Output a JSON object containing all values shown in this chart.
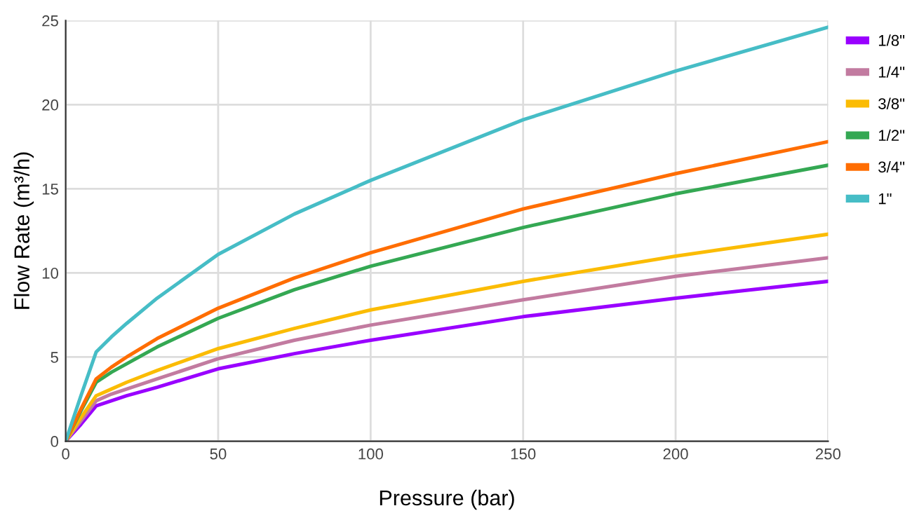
{
  "chart_data": {
    "type": "line",
    "xlabel": "Pressure (bar)",
    "ylabel": "Flow Rate (m³/h)",
    "x": [
      0,
      5,
      10,
      15,
      20,
      30,
      50,
      75,
      100,
      150,
      200,
      250
    ],
    "series": [
      {
        "name": "1/8\"",
        "color": "#9900ff",
        "values": [
          0,
          1.0,
          2.1,
          2.4,
          2.7,
          3.2,
          4.3,
          5.2,
          6.0,
          7.4,
          8.5,
          9.5
        ]
      },
      {
        "name": "1/4\"",
        "color": "#c27ba0",
        "values": [
          0,
          1.2,
          2.4,
          2.8,
          3.1,
          3.7,
          4.9,
          6.0,
          6.9,
          8.4,
          9.8,
          10.9
        ]
      },
      {
        "name": "3/8\"",
        "color": "#fbbc04",
        "values": [
          0,
          1.4,
          2.7,
          3.1,
          3.5,
          4.2,
          5.5,
          6.7,
          7.8,
          9.5,
          11.0,
          12.3
        ]
      },
      {
        "name": "1/2\"",
        "color": "#34a853",
        "values": [
          0,
          1.8,
          3.5,
          4.1,
          4.6,
          5.6,
          7.3,
          9.0,
          10.4,
          12.7,
          14.7,
          16.4
        ]
      },
      {
        "name": "3/4\"",
        "color": "#ff6d01",
        "values": [
          0,
          1.9,
          3.7,
          4.4,
          5.0,
          6.1,
          7.9,
          9.7,
          11.2,
          13.8,
          15.9,
          17.8
        ]
      },
      {
        "name": "1\"",
        "color": "#46bdc6",
        "values": [
          0,
          2.7,
          5.3,
          6.2,
          7.0,
          8.5,
          11.1,
          13.5,
          15.5,
          19.1,
          22.0,
          24.6
        ]
      }
    ],
    "xlim": [
      0,
      250
    ],
    "xticks": [
      0,
      50,
      100,
      150,
      200,
      250
    ],
    "ylim": [
      0,
      25
    ],
    "yticks": [
      0,
      5,
      10,
      15,
      20,
      25
    ],
    "grid": true,
    "legend": "right",
    "marker": "none",
    "line_style": "solid"
  }
}
